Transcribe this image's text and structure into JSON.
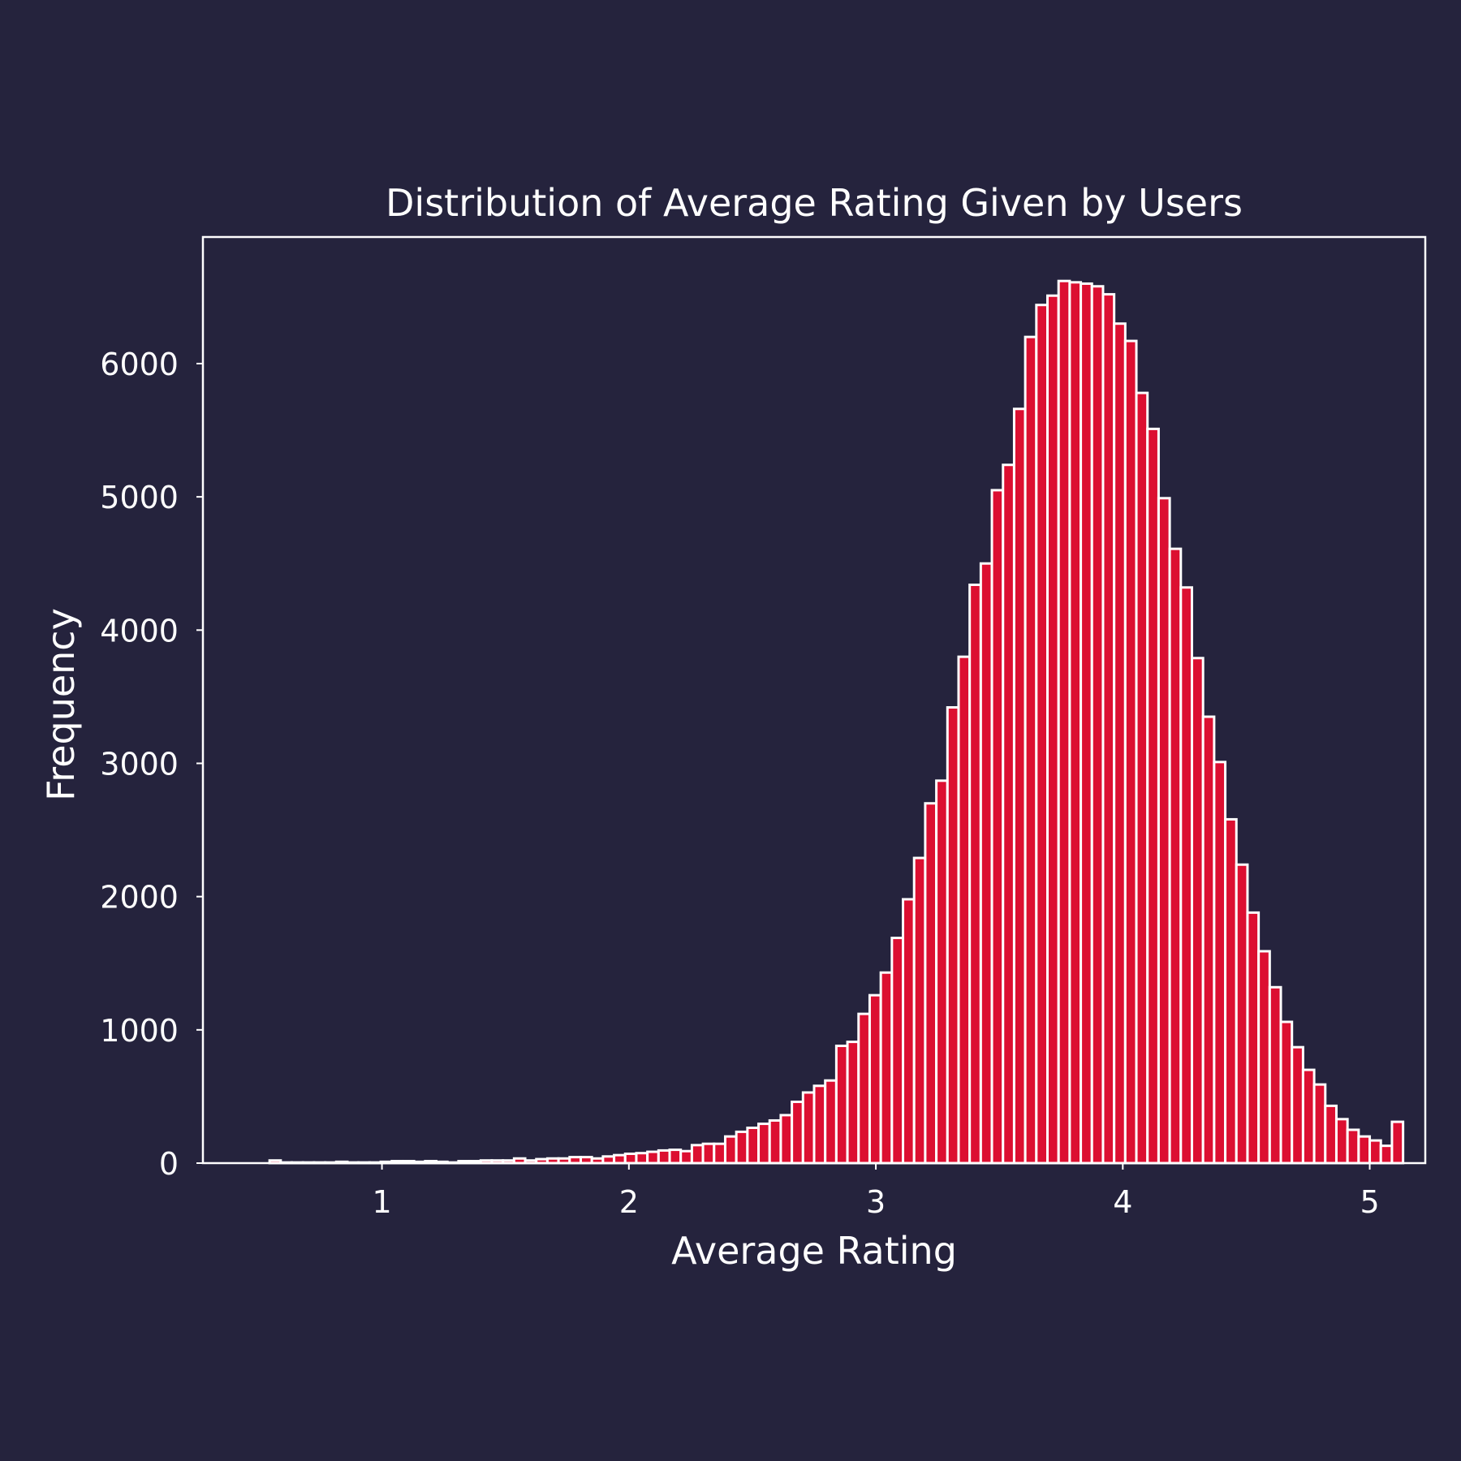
{
  "chart_data": {
    "type": "bar",
    "title": "Distribution of Average Rating Given by Users",
    "xlabel": "Average Rating",
    "ylabel": "Frequency",
    "xlim": [
      0.275,
      5.225
    ],
    "ylim": [
      0,
      6950
    ],
    "xticks": [
      1,
      2,
      3,
      4,
      5
    ],
    "yticks": [
      0,
      1000,
      2000,
      3000,
      4000,
      5000,
      6000
    ],
    "grid": false,
    "bin_start": 0.5,
    "bin_width": 0.045,
    "bar_color": "#dc0f31",
    "edge_color": "#ffffff",
    "background_color": "#25233d",
    "values": [
      0,
      20,
      5,
      5,
      5,
      5,
      5,
      10,
      5,
      5,
      5,
      10,
      15,
      15,
      10,
      15,
      10,
      5,
      15,
      15,
      20,
      20,
      20,
      35,
      20,
      30,
      35,
      35,
      45,
      45,
      35,
      50,
      60,
      70,
      75,
      85,
      95,
      100,
      90,
      135,
      145,
      145,
      200,
      235,
      265,
      295,
      320,
      360,
      460,
      530,
      580,
      620,
      880,
      910,
      1120,
      1260,
      1430,
      1690,
      1980,
      2290,
      2700,
      2870,
      3420,
      3800,
      4340,
      4500,
      5050,
      5240,
      5660,
      6200,
      6440,
      6510,
      6620,
      6610,
      6600,
      6580,
      6520,
      6300,
      6170,
      5780,
      5510,
      4990,
      4610,
      4320,
      3790,
      3350,
      3010,
      2580,
      2240,
      1880,
      1590,
      1320,
      1060,
      870,
      700,
      590,
      430,
      330,
      250,
      200,
      170,
      130,
      310
    ]
  }
}
